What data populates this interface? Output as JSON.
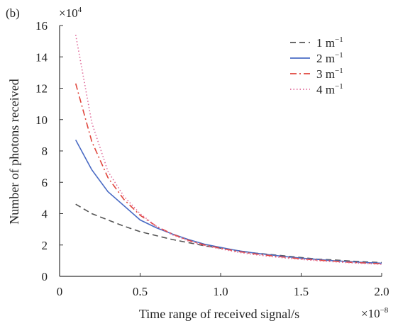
{
  "panel_label": "(b)",
  "chart_data": {
    "type": "line",
    "xlabel": "Time range of received signal/s",
    "ylabel": "Number of photons received",
    "x_multiplier": "×10",
    "x_exponent": "−8",
    "y_multiplier": "×10",
    "y_exponent": "4",
    "xlim": [
      0,
      2.0
    ],
    "ylim": [
      0,
      16
    ],
    "x_ticks": [
      0,
      0.5,
      1.0,
      1.5,
      2.0
    ],
    "x_tick_labels": [
      "0",
      "0.5",
      "1.0",
      "1.5",
      "2.0"
    ],
    "y_ticks": [
      0,
      2,
      4,
      6,
      8,
      10,
      12,
      14,
      16
    ],
    "y_tick_labels": [
      "0",
      "2",
      "4",
      "6",
      "8",
      "10",
      "12",
      "14",
      "16"
    ],
    "grid": false,
    "legend_position": "top-right",
    "x": [
      0.1,
      0.2,
      0.3,
      0.4,
      0.5,
      0.6,
      0.7,
      0.8,
      0.9,
      1.0,
      1.1,
      1.2,
      1.3,
      1.4,
      1.5,
      1.6,
      1.7,
      1.8,
      1.9,
      2.0
    ],
    "series": [
      {
        "name": "1 m",
        "unit_exp": "−1",
        "color": "#555555",
        "dash": "dashed",
        "values": [
          4.6,
          4.0,
          3.6,
          3.2,
          2.85,
          2.6,
          2.35,
          2.15,
          1.95,
          1.8,
          1.65,
          1.5,
          1.4,
          1.3,
          1.2,
          1.1,
          1.05,
          0.98,
          0.92,
          0.88
        ]
      },
      {
        "name": "2 m",
        "unit_exp": "−1",
        "color": "#4a6bc4",
        "dash": "solid",
        "values": [
          8.7,
          6.8,
          5.4,
          4.5,
          3.6,
          3.1,
          2.7,
          2.35,
          2.05,
          1.85,
          1.65,
          1.5,
          1.38,
          1.26,
          1.16,
          1.08,
          1.0,
          0.94,
          0.88,
          0.84
        ]
      },
      {
        "name": "3 m",
        "unit_exp": "−1",
        "color": "#e0463c",
        "dash": "dashdot",
        "values": [
          12.3,
          8.6,
          6.3,
          4.9,
          3.9,
          3.2,
          2.7,
          2.3,
          2.0,
          1.8,
          1.6,
          1.45,
          1.33,
          1.22,
          1.12,
          1.04,
          0.97,
          0.9,
          0.85,
          0.8
        ]
      },
      {
        "name": "4 m",
        "unit_exp": "−1",
        "color": "#e06b9a",
        "dash": "dotted",
        "values": [
          15.4,
          9.8,
          6.7,
          5.1,
          4.0,
          3.2,
          2.65,
          2.25,
          1.95,
          1.75,
          1.55,
          1.4,
          1.28,
          1.17,
          1.08,
          1.0,
          0.93,
          0.87,
          0.82,
          0.77
        ]
      }
    ]
  }
}
